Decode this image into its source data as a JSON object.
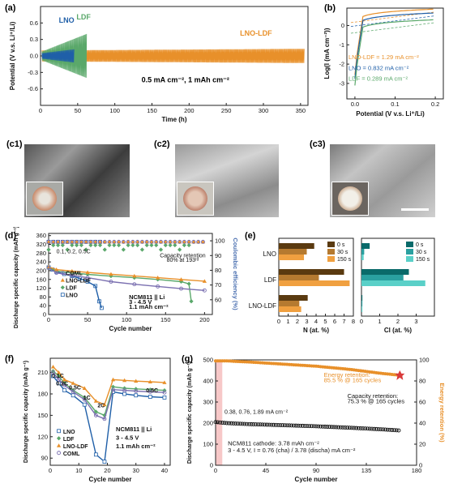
{
  "panel_labels": {
    "a": "(a)",
    "b": "(b)",
    "c1": "(c1)",
    "c2": "(c2)",
    "c3": "(c3)",
    "d": "(d)",
    "e": "(e)",
    "f": "(f)",
    "g": "(g)"
  },
  "colors": {
    "lno": "#1f5fa8",
    "ldf": "#5aa86a",
    "lnoldf": "#e8902a",
    "coml": "#7a6fb0",
    "red": "#d93a3a"
  },
  "chart_data": [
    {
      "id": "a",
      "type": "line",
      "xlabel": "Time (h)",
      "ylabel": "Potential (V v.s. Li⁺/Li)",
      "xlim": [
        0,
        360
      ],
      "ylim": [
        -0.9,
        0.9
      ],
      "xticks": [
        0,
        50,
        100,
        150,
        200,
        250,
        300,
        350
      ],
      "yticks": [
        -0.6,
        -0.3,
        0.0,
        0.3,
        0.6
      ],
      "series": [
        {
          "name": "LNO",
          "end_time_h": 45,
          "amplitude": 0.12
        },
        {
          "name": "LDF",
          "end_time_h": 62,
          "amplitude": 0.4
        },
        {
          "name": "LNO-LDF",
          "end_time_h": 355,
          "amplitude": 0.1
        }
      ],
      "annotations": [
        "LNO",
        "LDF",
        "LNO-LDF",
        "0.5 mA cm⁻², 1 mAh cm⁻²"
      ]
    },
    {
      "id": "b",
      "type": "line",
      "xlabel": "Potential (V v.s. Li⁺/Li)",
      "ylabel": "Log(I (mA cm⁻²))",
      "xlim": [
        -0.02,
        0.22
      ],
      "ylim": [
        -3.8,
        0.9
      ],
      "xticks": [
        0.0,
        0.1,
        0.2
      ],
      "yticks": [
        -3,
        -2,
        -1,
        0
      ],
      "series": [
        {
          "name": "LNO-LDF",
          "exchange_current": "1.29 mA cm⁻²"
        },
        {
          "name": "LNO",
          "exchange_current": "0.832 mA cm⁻²"
        },
        {
          "name": "LDF",
          "exchange_current": "0.289 mA cm⁻²"
        }
      ],
      "annotations": [
        "LNO-LDF = 1.29 mA cm⁻²",
        "LNO = 0.832 mA cm⁻²",
        "LDF = 0.289 mA cm⁻²"
      ]
    },
    {
      "id": "d",
      "type": "scatter",
      "xlabel": "Cycle number",
      "ylabel": "Discharge specific capacity (mAh g⁻¹)",
      "y2label": "Coulombic efficiency (%)",
      "xlim": [
        0,
        210
      ],
      "ylim": [
        0,
        370
      ],
      "y2lim": [
        50,
        105
      ],
      "xticks": [
        0,
        50,
        100,
        150,
        200
      ],
      "yticks": [
        0,
        40,
        80,
        120,
        160,
        200,
        240,
        280,
        320,
        360
      ],
      "y2ticks": [
        60,
        70,
        80,
        90,
        100
      ],
      "series": [
        {
          "name": "LNO",
          "x": [
            0,
            5,
            10,
            20,
            30,
            40,
            50,
            60,
            65,
            68
          ],
          "y": [
            215,
            205,
            195,
            185,
            175,
            165,
            150,
            130,
            60,
            30
          ]
        },
        {
          "name": "LDF",
          "x": [
            0,
            10,
            30,
            50,
            80,
            110,
            140,
            170,
            180,
            183
          ],
          "y": [
            215,
            198,
            190,
            183,
            175,
            168,
            160,
            150,
            140,
            60
          ]
        },
        {
          "name": "LNO-LDF",
          "x": [
            0,
            10,
            30,
            50,
            80,
            110,
            140,
            170,
            200
          ],
          "y": [
            218,
            205,
            198,
            192,
            184,
            176,
            168,
            160,
            152
          ]
        },
        {
          "name": "COML",
          "x": [
            0,
            10,
            30,
            50,
            80,
            110,
            140,
            170,
            200
          ],
          "y": [
            212,
            190,
            178,
            168,
            150,
            138,
            128,
            118,
            110
          ]
        }
      ],
      "annotations": [
        "0.1, 0.2, 0.5C",
        "Capacity retention",
        "80% at 193ʳᵈ",
        "NCM811 || Li",
        "3 - 4.5 V",
        "1.1 mAh cm⁻²"
      ]
    },
    {
      "id": "e",
      "type": "bar",
      "categories": [
        "LNO",
        "LDF",
        "LNO-LDF"
      ],
      "legend_left": [
        "0 s",
        "30 s",
        "150 s"
      ],
      "legend_right": [
        "0 s",
        "30 s",
        "150 s"
      ],
      "xlabel_left": "N (at. %)",
      "xlabel_right": "Cl (at. %)",
      "xlim_left": [
        0,
        8
      ],
      "xlim_right": [
        0,
        4
      ],
      "xticks_left": [
        0,
        1,
        2,
        3,
        4,
        5,
        6,
        7,
        8
      ],
      "xticks_right": [
        0,
        1,
        2,
        3
      ],
      "n_values": {
        "LNO": [
          3.8,
          3.0,
          2.7
        ],
        "LDF": [
          7.0,
          4.3,
          7.6
        ],
        "LNO-LDF": [
          3.1,
          2.2,
          2.4
        ]
      },
      "cl_values": {
        "LNO": [
          0.45,
          0.15,
          0.12
        ],
        "LDF": [
          2.6,
          2.3,
          3.5
        ],
        "LNO-LDF": [
          0.05,
          0.05,
          0.05
        ]
      }
    },
    {
      "id": "f",
      "type": "scatter",
      "xlabel": "Cycle number",
      "ylabel": "Discharge specific capacity (mAh g⁻¹)",
      "xlim": [
        0,
        42
      ],
      "ylim": [
        80,
        230
      ],
      "xticks": [
        0,
        10,
        20,
        30,
        40
      ],
      "yticks": [
        90,
        120,
        150,
        180,
        210
      ],
      "rate_labels": [
        "0.1C",
        "0.2C",
        "0.5C",
        "1C",
        "2C",
        "0.5C"
      ],
      "series": [
        {
          "name": "LNO",
          "x": [
            1,
            3,
            5,
            8,
            12,
            16,
            19,
            22,
            26,
            30,
            35,
            40
          ],
          "y": [
            205,
            195,
            185,
            178,
            165,
            95,
            85,
            183,
            180,
            178,
            176,
            175
          ]
        },
        {
          "name": "LDF",
          "x": [
            1,
            3,
            5,
            8,
            12,
            16,
            19,
            22,
            26,
            30,
            35,
            40
          ],
          "y": [
            212,
            205,
            195,
            185,
            175,
            155,
            150,
            190,
            188,
            187,
            186,
            185
          ]
        },
        {
          "name": "LNO-LDF",
          "x": [
            1,
            3,
            5,
            8,
            12,
            16,
            19,
            22,
            26,
            30,
            35,
            40
          ],
          "y": [
            218,
            210,
            200,
            195,
            188,
            170,
            165,
            200,
            199,
            198,
            197,
            196
          ]
        },
        {
          "name": "COML",
          "x": [
            1,
            3,
            5,
            8,
            12,
            16,
            19,
            22,
            26,
            30,
            35,
            40
          ],
          "y": [
            210,
            200,
            192,
            183,
            172,
            150,
            145,
            186,
            185,
            184,
            183,
            182
          ]
        }
      ],
      "annotations": [
        "NCM811 || Li",
        "3 - 4.5 V",
        "1.1 mAh cm⁻²"
      ]
    },
    {
      "id": "g",
      "type": "scatter",
      "xlabel": "Cycle number",
      "ylabel": "Discharge specific capacity (mAh g⁻¹)",
      "y2label": "Energy retention (%)",
      "xlim": [
        0,
        180
      ],
      "ylim": [
        0,
        500
      ],
      "y2lim": [
        0,
        100
      ],
      "xticks": [
        0,
        45,
        90,
        135,
        180
      ],
      "yticks": [
        0,
        100,
        200,
        300,
        400,
        500
      ],
      "y2ticks": [
        0,
        20,
        40,
        60,
        80,
        100
      ],
      "series": [
        {
          "name": "Capacity",
          "x": [
            0,
            10,
            30,
            60,
            90,
            120,
            150,
            165
          ],
          "y": [
            205,
            200,
            195,
            190,
            185,
            178,
            170,
            165
          ]
        },
        {
          "name": "Energy retention",
          "x": [
            0,
            10,
            30,
            60,
            90,
            120,
            150,
            165
          ],
          "y": [
            99,
            99,
            98,
            96,
            94,
            91,
            87,
            85.5
          ]
        }
      ],
      "annotations": [
        "0.38, 0.76, 1.89 mA cm⁻²",
        "Energy retention:",
        "85.5 % @ 165 cycles",
        "Capacity retention:",
        "75.3 % @ 165 cycles",
        "NCM811 cathode: 3.78 mAh cm⁻²",
        "3 - 4.5 V, I = 0.76 (cha) / 3.78 (discha) mA cm⁻²"
      ]
    }
  ]
}
